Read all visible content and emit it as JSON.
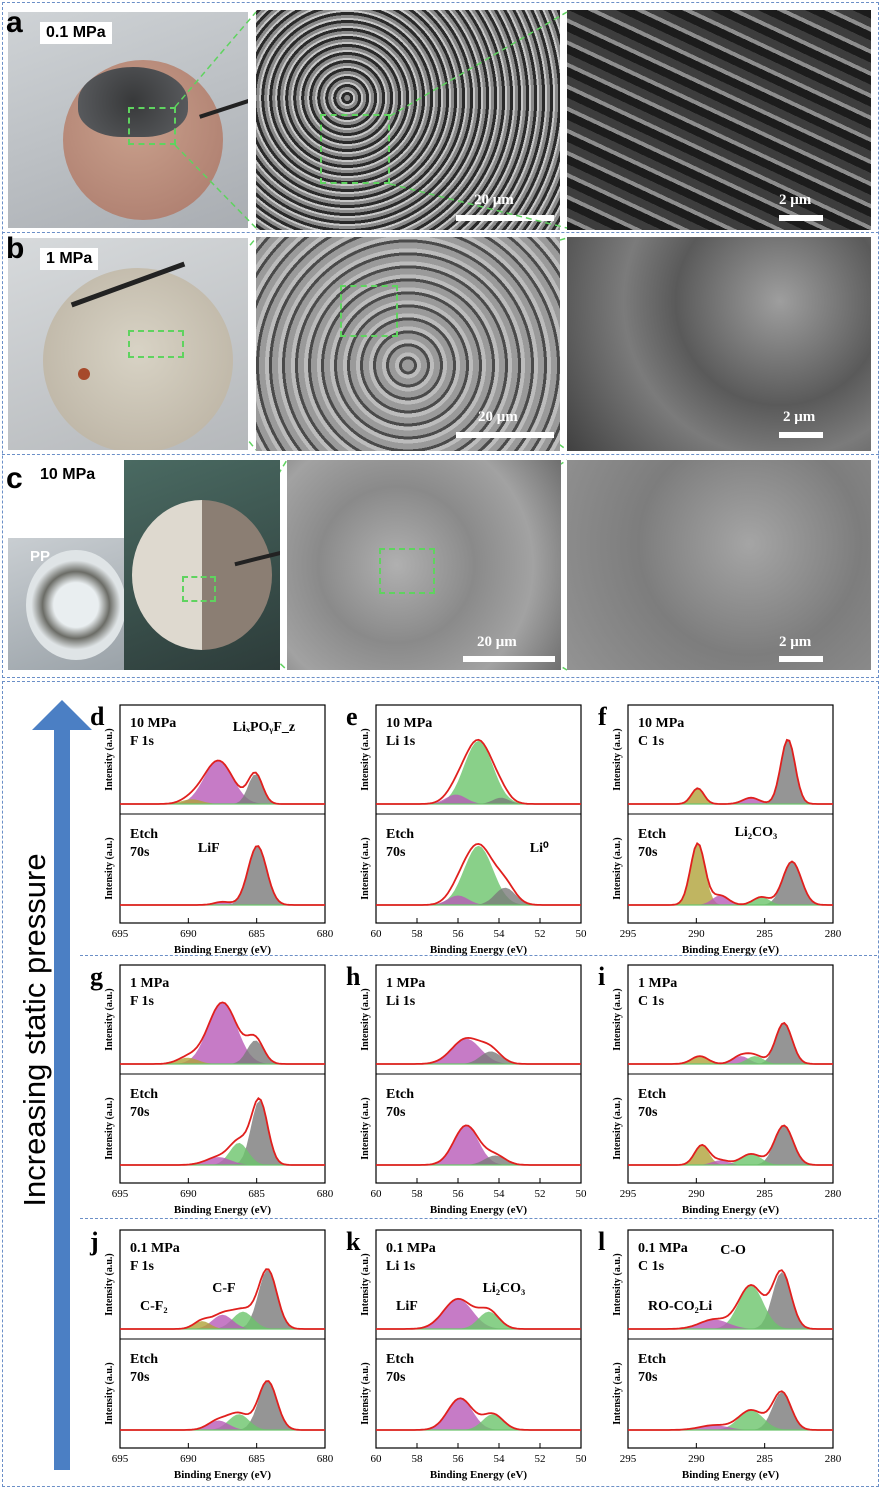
{
  "top": {
    "rows": [
      {
        "letter": "a",
        "pressure": "0.1 MPa",
        "scale_mid": "20 μm",
        "scale_right": "2 μm"
      },
      {
        "letter": "b",
        "pressure": "1 MPa",
        "scale_mid": "20 μm",
        "scale_right": "2 μm"
      },
      {
        "letter": "c",
        "pressure": "10 MPa",
        "pp": "PP",
        "scale_mid": "20 μm",
        "scale_right": "2 μm"
      }
    ]
  },
  "arrow_label": "Increasing static pressure",
  "xps": {
    "xlabel": "Binding Energy (eV)",
    "ylabel": "Intensity (a.u.)",
    "F": {
      "ticks": [
        "695",
        "690",
        "685",
        "680"
      ]
    },
    "Li": {
      "ticks": [
        "60",
        "58",
        "56",
        "54",
        "52",
        "50"
      ]
    },
    "C": {
      "ticks": [
        "295",
        "290",
        "285",
        "280"
      ]
    },
    "panels": [
      {
        "letter": "d",
        "top": "10 MPa",
        "el": "F 1s",
        "etch": "Etch",
        "time": "70s",
        "ann1": "LiₓPOᵧF_z",
        "ann2": "LiF"
      },
      {
        "letter": "e",
        "top": "10 MPa",
        "el": "Li 1s",
        "etch": "Etch",
        "time": "70s",
        "ann2": "Li⁰"
      },
      {
        "letter": "f",
        "top": "10 MPa",
        "el": "C 1s",
        "etch": "Etch",
        "time": "70s",
        "ann2": "Li₂CO₃"
      },
      {
        "letter": "g",
        "top": "1 MPa",
        "el": "F 1s",
        "etch": "Etch",
        "time": "70s"
      },
      {
        "letter": "h",
        "top": "1 MPa",
        "el": "Li 1s",
        "etch": "Etch",
        "time": "70s"
      },
      {
        "letter": "i",
        "top": "1 MPa",
        "el": "C 1s",
        "etch": "Etch",
        "time": "70s"
      },
      {
        "letter": "j",
        "top": "0.1 MPa",
        "el": "F 1s",
        "etch": "Etch",
        "time": "70s",
        "ann1": "C-F₂",
        "ann3": "C-F"
      },
      {
        "letter": "k",
        "top": "0.1 MPa",
        "el": "Li 1s",
        "etch": "Etch",
        "time": "70s",
        "ann1": "LiF",
        "ann3": "Li₂CO₃"
      },
      {
        "letter": "l",
        "top": "0.1 MPa",
        "el": "C 1s",
        "etch": "Etch",
        "time": "70s",
        "ann1": "RO-CO₂Li",
        "ann3": "C-O"
      }
    ]
  },
  "colors": {
    "fit": "#e0201e",
    "magenta": "#b85ab8",
    "gray": "#7a7a7a",
    "green": "#6cc46c",
    "olive": "#b0a23a",
    "arrow": "#4b7fc4"
  }
}
